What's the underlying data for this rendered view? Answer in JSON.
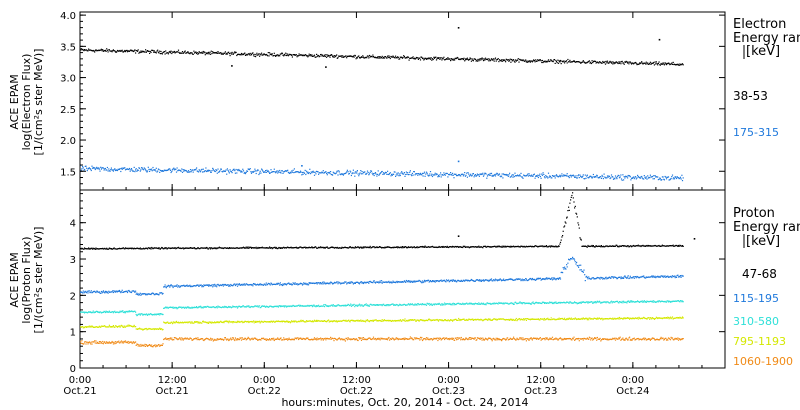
{
  "chart_data": [
    {
      "type": "scatter",
      "instrument": "ACE EPAM",
      "ylabel_lines": [
        "ACE EPAM",
        "log(Electron Flux)",
        "[1/(cm²s ster MeV)]"
      ],
      "legend_title_lines": [
        "Electron",
        "Energy ran",
        "[keV]"
      ],
      "ylim": [
        1.2,
        4.05
      ],
      "yticks": [
        "1.5",
        "2.0",
        "2.5",
        "3.0",
        "3.5",
        "4.0"
      ],
      "series": [
        {
          "name": "38-53",
          "color": "#000000",
          "base": 3.45,
          "end": 3.22,
          "noise": 0.04,
          "outliers": [
            [
              2.05,
              3.81
            ],
            [
              3.14,
              3.62
            ],
            [
              0.82,
              3.2
            ],
            [
              1.33,
              3.18
            ],
            [
              2.6,
              3.27
            ]
          ]
        },
        {
          "name": "175-315",
          "color": "#1e78dc",
          "base": 1.55,
          "end": 1.4,
          "noise": 0.06,
          "outliers": [
            [
              1.2,
              1.6
            ],
            [
              2.05,
              1.67
            ]
          ]
        }
      ]
    },
    {
      "type": "scatter",
      "instrument": "ACE EPAM",
      "ylabel_lines": [
        "ACE EPAM",
        "log(Proton Flux)",
        "[1/(cm²s ster MeV)]"
      ],
      "legend_title_lines": [
        "Proton",
        "Energy ran",
        "[keV]"
      ],
      "ylim": [
        0,
        4.9
      ],
      "yticks": [
        "0",
        "1",
        "2",
        "3",
        "4"
      ],
      "series": [
        {
          "name": "47-68",
          "color": "#000000",
          "base": 3.3,
          "end": 3.38,
          "noise": 0.03,
          "event": {
            "start": 2.6,
            "peak": 2.67,
            "end": 2.72,
            "height": 1.45
          },
          "outliers": [
            [
              2.05,
              3.65
            ],
            [
              3.33,
              3.58
            ]
          ]
        },
        {
          "name": "115-195",
          "color": "#1e78dc",
          "base": 2.1,
          "end": 2.42,
          "noise": 0.05,
          "event": {
            "start": 2.6,
            "peak": 2.66,
            "end": 2.75,
            "height": 0.6
          }
        },
        {
          "name": "310-580",
          "color": "#2ee0d8",
          "base": 1.55,
          "end": 1.76,
          "noise": 0.04
        },
        {
          "name": "795-1193",
          "color": "#d4e800",
          "base": 1.15,
          "end": 1.3,
          "noise": 0.04
        },
        {
          "name": "1060-1900",
          "color": "#f08a16",
          "base": 0.72,
          "end": 0.72,
          "noise": 0.06
        }
      ]
    }
  ],
  "x_axis": {
    "tick_times": [
      "0:00",
      "12:00",
      "0:00",
      "12:00",
      "0:00",
      "12:00",
      "0:00"
    ],
    "tick_dates": [
      "Oct.21",
      "Oct.21",
      "Oct.22",
      "Oct.22",
      "Oct.23",
      "Oct.23",
      "Oct.24"
    ],
    "xlabel": "hours:minutes, Oct. 20, 2014 - Oct. 24, 2014",
    "xlim_days": [
      0,
      3.5
    ],
    "data_end_days": 3.27
  }
}
